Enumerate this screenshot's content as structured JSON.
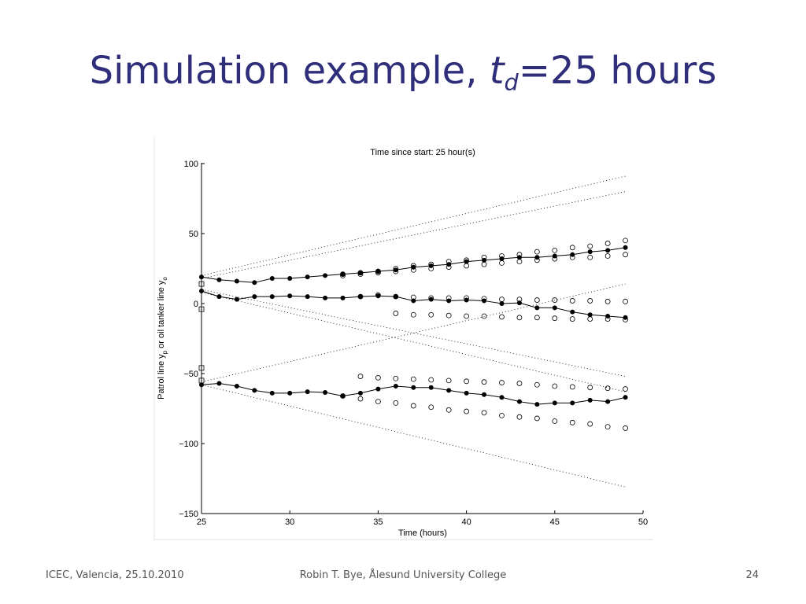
{
  "slide": {
    "title_prefix": "Simulation example, ",
    "title_var": "t",
    "title_sub": "d",
    "title_suffix": "=25 hours"
  },
  "footer": {
    "left": "ICEC, Valencia, 25.10.2010",
    "center": "Robin T. Bye, Ålesund University College",
    "page": "24"
  },
  "colors": {
    "title": "#2e2e7a",
    "ink": "#000000",
    "footer": "#555555"
  },
  "chart_data": {
    "type": "scatter",
    "title": "Time since start: 25 hour(s)",
    "xlabel": "Time (hours)",
    "ylabel_parts": [
      "Patrol line y",
      "p",
      " or oil tanker line y",
      "o"
    ],
    "xlim": [
      25,
      50
    ],
    "ylim": [
      -150,
      100
    ],
    "xticks": [
      25,
      30,
      35,
      40,
      45,
      50
    ],
    "yticks": [
      -150,
      -100,
      -50,
      0,
      50,
      100
    ],
    "grid": false,
    "patrol_lines": [
      {
        "x": [
          25,
          26,
          27,
          28,
          29,
          30,
          31,
          32,
          33,
          34,
          35,
          36,
          37,
          38,
          39,
          40,
          41,
          42,
          43,
          44,
          45,
          46,
          47,
          48,
          49
        ],
        "y": [
          19,
          17,
          16,
          15,
          18,
          18,
          19,
          20,
          21,
          22,
          23,
          24,
          26,
          27,
          28,
          30,
          31,
          32,
          33,
          33,
          34,
          35,
          37,
          38,
          40
        ]
      },
      {
        "x": [
          25,
          26,
          27,
          28,
          29,
          30,
          31,
          32,
          33,
          34,
          35,
          36,
          37,
          38,
          39,
          40,
          41,
          42,
          43,
          44,
          45,
          46,
          47,
          48,
          49
        ],
        "y": [
          9,
          5,
          3,
          5,
          5,
          5.5,
          5,
          4,
          4,
          5,
          5.5,
          5,
          2,
          3,
          2,
          2.5,
          2,
          0,
          0.5,
          -3,
          -3,
          -6,
          -8,
          -9,
          -10
        ]
      },
      {
        "x": [
          25,
          26,
          27,
          28,
          29,
          30,
          31,
          32,
          33,
          34,
          35,
          36,
          37,
          38,
          39,
          40,
          41,
          42,
          43,
          44,
          45,
          46,
          47,
          48,
          49
        ],
        "y": [
          -58,
          -57,
          -59,
          -62,
          -64,
          -64,
          -63,
          -63.5,
          -66,
          -64,
          -61,
          -59,
          -60,
          -60,
          -62,
          -64,
          -65,
          -67,
          -70,
          -72,
          -71,
          -71,
          -69,
          -70,
          -67
        ]
      }
    ],
    "tanker_points": [
      {
        "x": [
          33,
          34,
          35,
          36,
          37,
          38,
          39,
          40,
          41,
          42,
          43,
          44,
          45,
          46,
          47,
          48,
          49
        ],
        "y": [
          21,
          22,
          23,
          25,
          27,
          28,
          30,
          31,
          33,
          34,
          35,
          37,
          38,
          40,
          41,
          43,
          45
        ]
      },
      {
        "x": [
          33,
          34,
          35,
          36,
          37,
          38,
          39,
          40,
          41,
          42,
          43,
          44,
          45,
          46,
          47,
          48,
          49
        ],
        "y": [
          20,
          21,
          22,
          23,
          24,
          25,
          26,
          27,
          28,
          29,
          30,
          31,
          32,
          33,
          33,
          34,
          35
        ]
      },
      {
        "x": [
          34,
          35,
          36,
          37,
          38,
          39,
          40,
          41,
          42,
          43,
          44,
          45,
          46,
          47,
          48,
          49
        ],
        "y": [
          5,
          6,
          5,
          4.5,
          4,
          4,
          4,
          3.5,
          3,
          3,
          2.5,
          2.5,
          2,
          2,
          1.5,
          1.5
        ]
      },
      {
        "x": [
          36,
          37,
          38,
          39,
          40,
          41,
          42,
          43,
          44,
          45,
          46,
          47,
          48,
          49
        ],
        "y": [
          -7,
          -8,
          -8,
          -8.5,
          -9,
          -9,
          -9.5,
          -10,
          -10,
          -10.5,
          -11,
          -11,
          -11,
          -11.5
        ]
      },
      {
        "x": [
          34,
          35,
          36,
          37,
          38,
          39,
          40,
          41,
          42,
          43,
          44,
          45,
          46,
          47,
          48,
          49
        ],
        "y": [
          -52,
          -53,
          -53.5,
          -54,
          -54.5,
          -55,
          -55.5,
          -56,
          -56.5,
          -57,
          -58,
          -59,
          -59.5,
          -60,
          -60.5,
          -61
        ]
      },
      {
        "x": [
          33,
          34,
          35,
          36,
          37,
          38,
          39,
          40,
          41,
          42,
          43,
          44,
          45,
          46,
          47,
          48,
          49
        ],
        "y": [
          -66,
          -68,
          -70,
          -71,
          -73,
          -74,
          -76,
          -77,
          -78,
          -80,
          -81,
          -82,
          -84,
          -85,
          -86,
          -88,
          -89
        ]
      }
    ],
    "start_markers": {
      "x": [
        25,
        25,
        25,
        25
      ],
      "y": [
        14,
        -4,
        -46,
        -55
      ]
    },
    "envelope_lines": [
      {
        "x": [
          25,
          49
        ],
        "y": [
          20,
          91
        ]
      },
      {
        "x": [
          25,
          49
        ],
        "y": [
          18,
          80
        ]
      },
      {
        "x": [
          25,
          49
        ],
        "y": [
          10,
          -52
        ]
      },
      {
        "x": [
          25,
          49
        ],
        "y": [
          8,
          -63
        ]
      },
      {
        "x": [
          25,
          49
        ],
        "y": [
          -56,
          14
        ]
      },
      {
        "x": [
          25,
          49
        ],
        "y": [
          -58,
          -131
        ]
      }
    ]
  }
}
